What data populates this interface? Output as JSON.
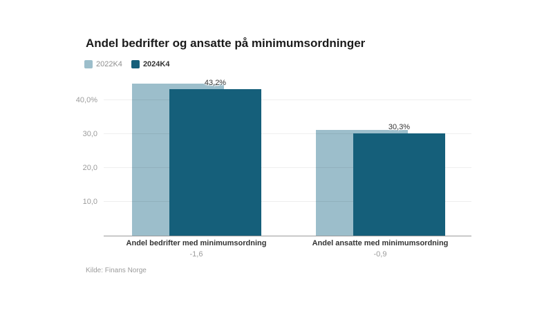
{
  "chart_data": {
    "type": "bar",
    "title": "Andel bedrifter og ansatte på minimumsordninger",
    "source": "Kilde: Finans Norge",
    "legend_position": "top-left",
    "grid": true,
    "categories": [
      "Andel bedrifter med minimumsordning",
      "Andel ansatte med minimumsordning"
    ],
    "series": [
      {
        "name": "2022K4",
        "color": "#9cbecb",
        "values": [
          44.8,
          31.2
        ]
      },
      {
        "name": "2024K4",
        "color": "#155f7a",
        "values": [
          43.2,
          30.3
        ]
      }
    ],
    "data_labels": [
      "43,2%",
      "30,3%"
    ],
    "category_diff_labels": [
      "-1,6",
      "-0,9"
    ],
    "yticks": [
      {
        "value": 10,
        "label": "10,0"
      },
      {
        "value": 20,
        "label": "20,0"
      },
      {
        "value": 30,
        "label": "30,0"
      },
      {
        "value": 40,
        "label": "40,0%"
      }
    ],
    "ylim": [
      0,
      47
    ],
    "colors": {
      "series_2022": "#9cbecb",
      "series_2024": "#155f7a",
      "axis_text": "#9b9b9b",
      "grid_line": "#ededed",
      "axis_line": "#9a9a9a",
      "title_text": "#1a1a1a",
      "label_text": "#333333"
    }
  }
}
